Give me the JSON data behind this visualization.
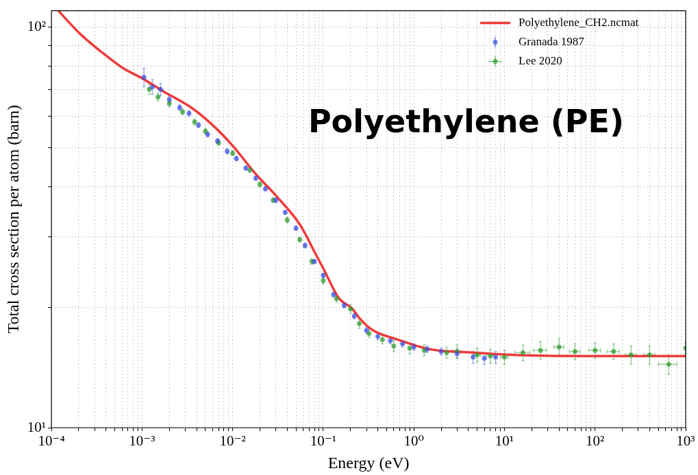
{
  "chart_data": {
    "type": "line",
    "xlabel": "Energy (eV)",
    "ylabel": "Total cross section per atom (barn)",
    "annotations": [
      "Polyethylene (PE)"
    ],
    "log": "xy",
    "grid": true,
    "legend": "top right",
    "xlim": [
      0.0001,
      1000
    ],
    "ylim": [
      10,
      110
    ],
    "xticks": [
      {
        "value": 0.0001,
        "label": "10⁻⁴"
      },
      {
        "value": 0.0002,
        "label": null
      },
      {
        "value": 0.0003,
        "label": null
      },
      {
        "value": 0.0004,
        "label": null
      },
      {
        "value": 0.0005,
        "label": null
      },
      {
        "value": 0.0006,
        "label": null
      },
      {
        "value": 0.0007,
        "label": null
      },
      {
        "value": 0.0008,
        "label": null
      },
      {
        "value": 0.0009,
        "label": null
      },
      {
        "value": 0.001,
        "label": "10⁻³"
      },
      {
        "value": 0.002,
        "label": null
      },
      {
        "value": 0.003,
        "label": null
      },
      {
        "value": 0.004,
        "label": null
      },
      {
        "value": 0.005,
        "label": null
      },
      {
        "value": 0.006,
        "label": null
      },
      {
        "value": 0.007,
        "label": null
      },
      {
        "value": 0.008,
        "label": null
      },
      {
        "value": 0.009,
        "label": null
      },
      {
        "value": 0.01,
        "label": "10⁻²"
      },
      {
        "value": 0.02,
        "label": null
      },
      {
        "value": 0.03,
        "label": null
      },
      {
        "value": 0.04,
        "label": null
      },
      {
        "value": 0.05,
        "label": null
      },
      {
        "value": 0.06,
        "label": null
      },
      {
        "value": 0.07,
        "label": null
      },
      {
        "value": 0.08,
        "label": null
      },
      {
        "value": 0.09,
        "label": null
      },
      {
        "value": 0.1,
        "label": "10⁻¹"
      },
      {
        "value": 0.2,
        "label": null
      },
      {
        "value": 0.3,
        "label": null
      },
      {
        "value": 0.4,
        "label": null
      },
      {
        "value": 0.5,
        "label": null
      },
      {
        "value": 0.6,
        "label": null
      },
      {
        "value": 0.7,
        "label": null
      },
      {
        "value": 0.8,
        "label": null
      },
      {
        "value": 0.9,
        "label": null
      },
      {
        "value": 1,
        "label": "10⁰"
      },
      {
        "value": 2,
        "label": null
      },
      {
        "value": 3,
        "label": null
      },
      {
        "value": 4,
        "label": null
      },
      {
        "value": 5,
        "label": null
      },
      {
        "value": 6,
        "label": null
      },
      {
        "value": 7,
        "label": null
      },
      {
        "value": 8,
        "label": null
      },
      {
        "value": 9,
        "label": null
      },
      {
        "value": 10,
        "label": "10¹"
      },
      {
        "value": 20,
        "label": null
      },
      {
        "value": 30,
        "label": null
      },
      {
        "value": 40,
        "label": null
      },
      {
        "value": 50,
        "label": null
      },
      {
        "value": 60,
        "label": null
      },
      {
        "value": 70,
        "label": null
      },
      {
        "value": 80,
        "label": null
      },
      {
        "value": 90,
        "label": null
      },
      {
        "value": 100,
        "label": "10²"
      },
      {
        "value": 200,
        "label": null
      },
      {
        "value": 300,
        "label": null
      },
      {
        "value": 400,
        "label": null
      },
      {
        "value": 500,
        "label": null
      },
      {
        "value": 600,
        "label": null
      },
      {
        "value": 700,
        "label": null
      },
      {
        "value": 800,
        "label": null
      },
      {
        "value": 900,
        "label": null
      },
      {
        "value": 1000,
        "label": "10³"
      }
    ],
    "yticks": [
      {
        "value": 10,
        "label": "10¹"
      },
      {
        "value": 20,
        "label": null
      },
      {
        "value": 30,
        "label": null
      },
      {
        "value": 40,
        "label": null
      },
      {
        "value": 50,
        "label": null
      },
      {
        "value": 60,
        "label": null
      },
      {
        "value": 70,
        "label": null
      },
      {
        "value": 80,
        "label": null
      },
      {
        "value": 90,
        "label": null
      },
      {
        "value": 100,
        "label": "10²"
      }
    ],
    "series": [
      {
        "name": "Polyethylene_CH2.ncmat",
        "color": "#ee3b3b",
        "marker": "none",
        "x": [
          0.000119,
          0.00021,
          0.00036,
          0.00061,
          0.001,
          0.00175,
          0.0035,
          0.006,
          0.01,
          0.018,
          0.03,
          0.056,
          0.08,
          0.1,
          0.148,
          0.21,
          0.25,
          0.34,
          0.66,
          1.5,
          4.6,
          12,
          100,
          1000
        ],
        "values": [
          110,
          96,
          86.6,
          79.2,
          74.6,
          69,
          63,
          57,
          50.6,
          43,
          38,
          32,
          27.5,
          25,
          21.1,
          19.8,
          18.8,
          17.6,
          16.6,
          15.7,
          15.4,
          15.2,
          15.1,
          15.1
        ]
      },
      {
        "name": "Granada 1987",
        "type": "scatter",
        "color": "#3b4fe0",
        "marker": "circle",
        "x": [
          0.00105,
          0.0013,
          0.0016,
          0.002,
          0.0026,
          0.0033,
          0.0042,
          0.0053,
          0.0068,
          0.0087,
          0.011,
          0.014,
          0.018,
          0.023,
          0.03,
          0.038,
          0.05,
          0.063,
          0.08,
          0.1,
          0.13,
          0.17,
          0.22,
          0.3,
          0.4,
          0.55,
          0.75,
          1,
          1.4,
          2,
          3,
          4.5,
          6,
          8
        ],
        "values": [
          75,
          71,
          70,
          66,
          63,
          61,
          57,
          54,
          52,
          49,
          47,
          44.5,
          42,
          39.5,
          37,
          34.5,
          31.5,
          28.5,
          26,
          24,
          21.5,
          20.2,
          19,
          17.5,
          16.9,
          16.5,
          16.2,
          15.9,
          15.7,
          15.5,
          15.3,
          15,
          14.9,
          15
        ],
        "errors": [
          4,
          3,
          2.5,
          1.2,
          1,
          1,
          0.8,
          0.8,
          0.7,
          0.7,
          0.6,
          0.6,
          0.5,
          0.5,
          0.5,
          0.4,
          0.4,
          0.4,
          0.3,
          0.3,
          0.3,
          0.3,
          0.3,
          0.3,
          0.3,
          0.3,
          0.3,
          0.3,
          0.3,
          0.3,
          0.4,
          0.5,
          0.5,
          0.5
        ]
      },
      {
        "name": "Lee 2020",
        "type": "scatter",
        "color": "#2e9a2e",
        "marker": "circle",
        "x": [
          0.0012,
          0.0015,
          0.002,
          0.0028,
          0.0038,
          0.005,
          0.007,
          0.01,
          0.0155,
          0.02,
          0.028,
          0.04,
          0.055,
          0.075,
          0.1,
          0.14,
          0.2,
          0.25,
          0.32,
          0.45,
          0.6,
          0.9,
          1.3,
          2.3,
          3,
          5,
          7,
          10,
          16,
          25,
          40,
          60,
          100,
          160,
          250,
          400,
          650,
          1000
        ],
        "values": [
          70,
          67,
          64.5,
          61.5,
          58,
          55,
          51.5,
          48.5,
          44,
          40.5,
          37,
          33,
          29.5,
          26,
          23.3,
          21,
          19.8,
          18.2,
          17.2,
          16.6,
          16,
          15.8,
          15.6,
          15.4,
          15.5,
          15.2,
          15.1,
          15,
          15.4,
          15.6,
          15.9,
          15.5,
          15.6,
          15.5,
          15.2,
          15.2,
          14.4,
          15.8
        ],
        "errors": [
          2,
          1.5,
          1.2,
          1,
          1,
          0.8,
          0.8,
          0.7,
          0.6,
          0.6,
          0.5,
          0.5,
          0.4,
          0.4,
          0.4,
          0.4,
          0.5,
          0.5,
          0.4,
          0.4,
          0.5,
          0.5,
          0.5,
          0.5,
          0.6,
          0.6,
          0.6,
          0.6,
          0.7,
          0.8,
          0.8,
          0.7,
          0.7,
          0.7,
          0.8,
          0.8,
          0.8,
          0.5
        ],
        "xerrors": [
          null,
          null,
          null,
          null,
          null,
          null,
          null,
          null,
          null,
          null,
          null,
          null,
          null,
          null,
          null,
          null,
          null,
          null,
          null,
          null,
          null,
          null,
          null,
          null,
          0.3,
          0.5,
          0.7,
          1,
          3,
          4,
          5,
          8,
          15,
          25,
          35,
          60,
          150,
          null
        ]
      }
    ]
  }
}
